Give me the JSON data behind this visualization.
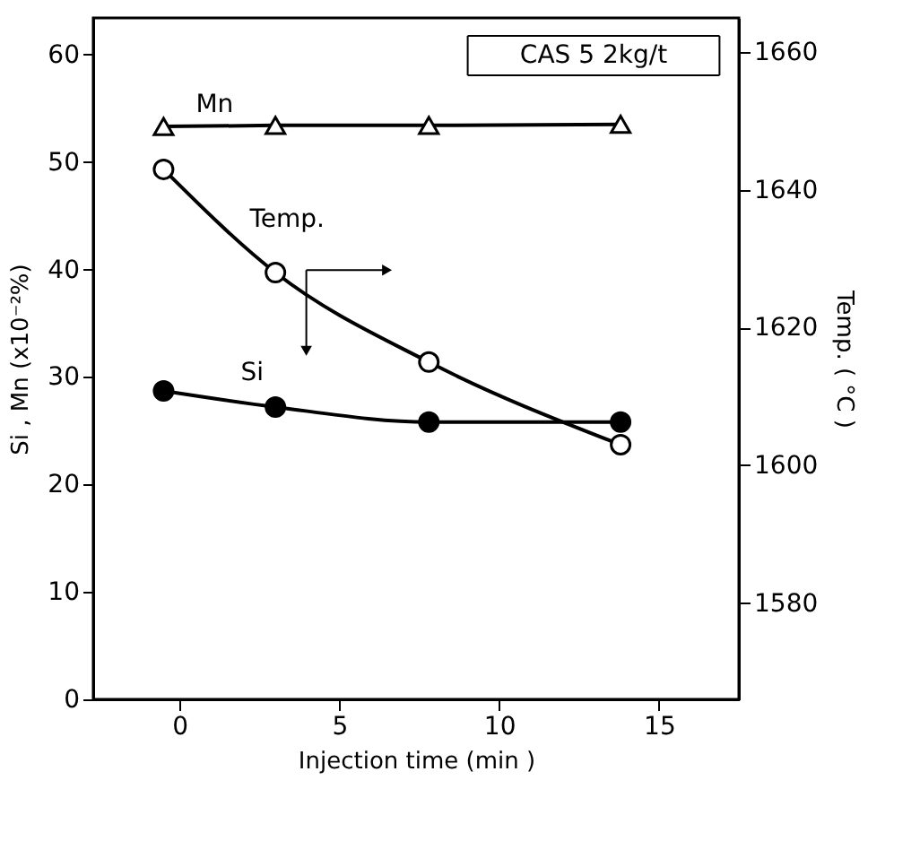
{
  "chart_data": {
    "type": "line",
    "xlabel": "Injection   time  (min )",
    "ylabel": "Si , Mn   (x10⁻²%)",
    "y2label": "Temp.  ( °C )",
    "x": [
      -0.5,
      3,
      7.8,
      13.8
    ],
    "xlim": [
      -2.7,
      17.5
    ],
    "xticks": [
      0,
      5,
      10,
      15
    ],
    "ylim": [
      0,
      63.4
    ],
    "yticks": [
      0,
      10,
      20,
      30,
      40,
      50,
      60
    ],
    "y2lim": [
      1566,
      1665
    ],
    "y2ticks": [
      1580,
      1600,
      1620,
      1640,
      1660
    ],
    "grid": false,
    "line_style": "solid",
    "series": [
      {
        "name": "Mn",
        "color": "#000000",
        "marker": "triangle",
        "values": [
          53.3,
          53.4,
          53.4,
          53.5
        ]
      },
      {
        "name": "Temp.",
        "color": "#000000",
        "marker": "circle",
        "axis": "y2",
        "values": [
          1643,
          1628,
          1615,
          1603
        ]
      },
      {
        "name": "Si",
        "color": "#000000",
        "marker": "circle",
        "values": [
          28.7,
          27.2,
          25.8,
          25.8
        ]
      }
    ],
    "annotations": [
      "CAS 5   2kg/t"
    ]
  }
}
